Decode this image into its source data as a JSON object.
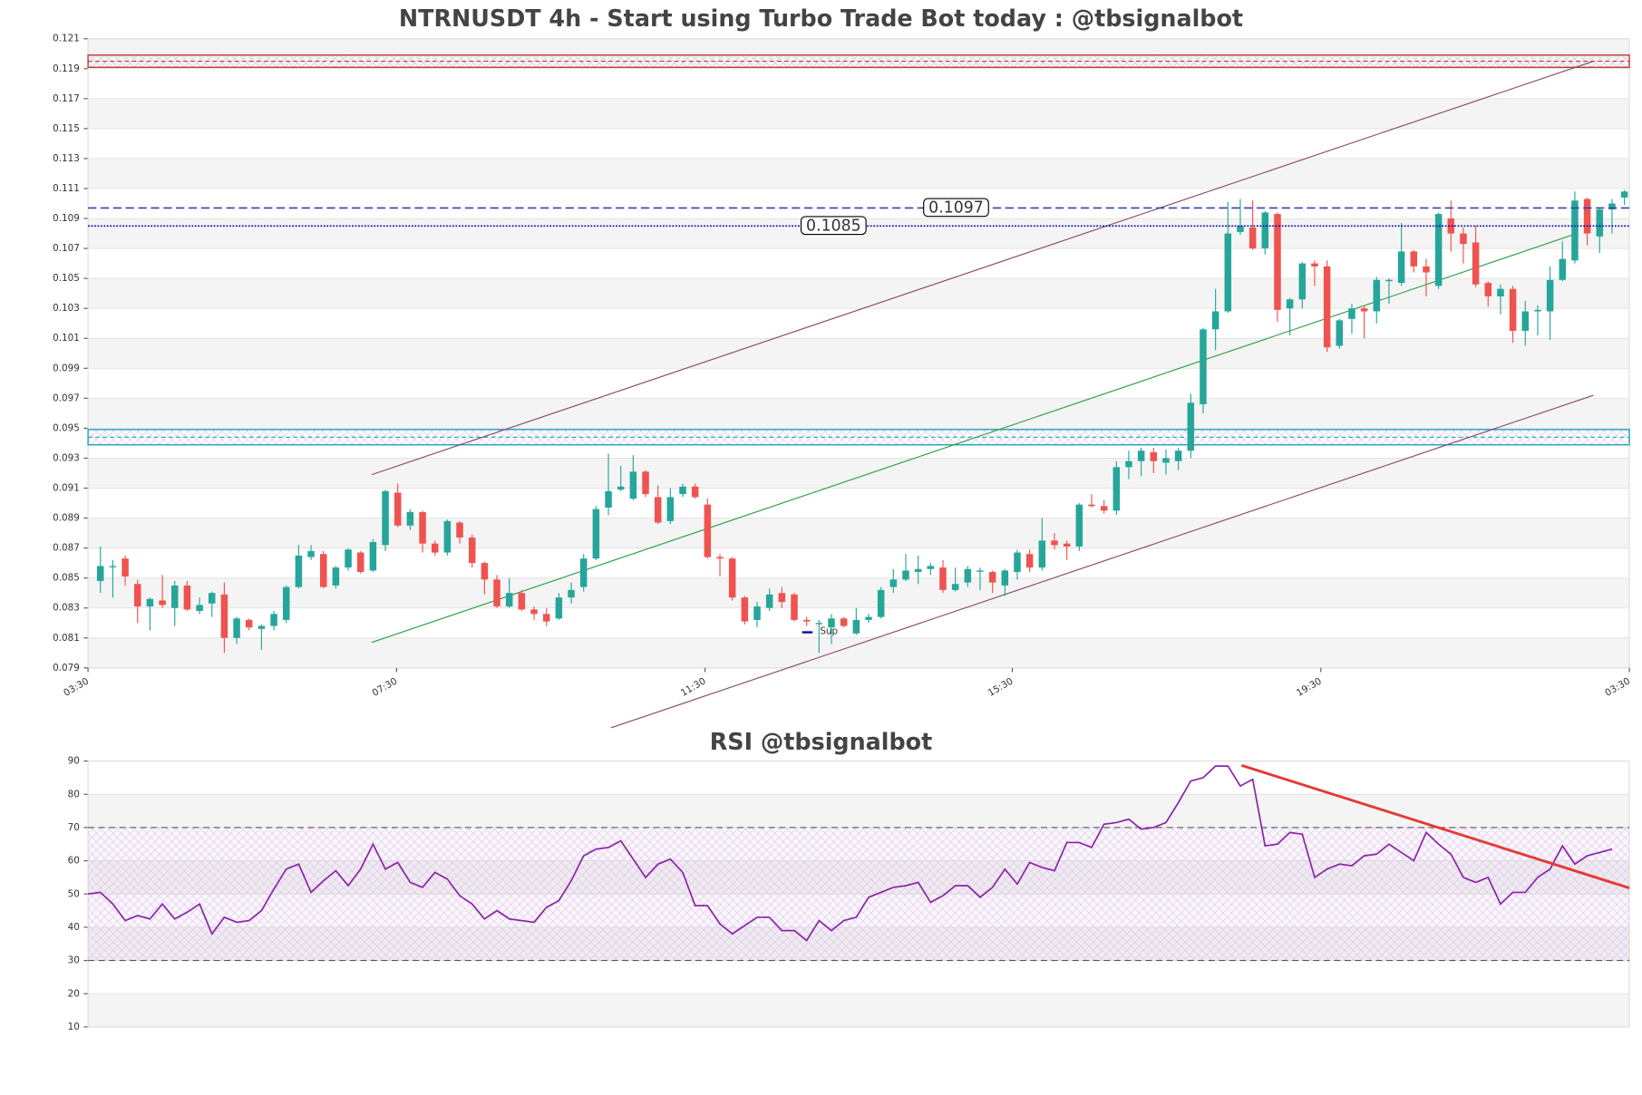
{
  "chart_data": [
    {
      "type": "candlestick",
      "title": "NTRNUSDT 4h - Start using Turbo Trade Bot today : @tbsignalbot",
      "open": [
        0.0848,
        0.0858,
        0.0863,
        0.0846,
        0.0831,
        0.0835,
        0.083,
        0.0845,
        0.0828,
        0.0833,
        0.0839,
        0.081,
        0.0822,
        0.0816,
        0.0818,
        0.0822,
        0.0844,
        0.0864,
        0.0866,
        0.0845,
        0.0857,
        0.0867,
        0.0855,
        0.0872,
        0.0907,
        0.0885,
        0.0894,
        0.0873,
        0.0867,
        0.0887,
        0.0877,
        0.086,
        0.0849,
        0.0831,
        0.084,
        0.0829,
        0.0826,
        0.0823,
        0.0837,
        0.0844,
        0.0863,
        0.0897,
        0.0909,
        0.0903,
        0.0921,
        0.0904,
        0.0888,
        0.0906,
        0.0911,
        0.0899,
        0.0864,
        0.0863,
        0.0837,
        0.0822,
        0.083,
        0.084,
        0.0839,
        0.0822,
        0.082,
        0.0817,
        0.0823,
        0.0813,
        0.0822,
        0.0824,
        0.0844,
        0.0849,
        0.0854,
        0.0856,
        0.0857,
        0.0842,
        0.0847,
        0.0855,
        0.0854,
        0.0845,
        0.0854,
        0.0866,
        0.0857,
        0.0875,
        0.0873,
        0.0871,
        0.0899,
        0.0898,
        0.0895,
        0.0924,
        0.0928,
        0.0934,
        0.0927,
        0.0928,
        0.0935,
        0.0966,
        0.1016,
        0.1028,
        0.1081,
        0.1084,
        0.107,
        0.1093,
        0.103,
        0.1036,
        0.106,
        0.1058,
        0.1005,
        0.1023,
        0.103,
        0.1028,
        0.1049,
        0.1047,
        0.1068,
        0.1058,
        0.1045,
        0.109,
        0.108,
        0.1074,
        0.1047,
        0.1038,
        0.1043,
        0.1015,
        0.1028,
        0.1028,
        0.1049,
        0.1062,
        0.1103,
        0.1078,
        0.1096,
        0.1104
      ],
      "high": [
        0.0871,
        0.0862,
        0.0865,
        0.0849,
        0.0837,
        0.0852,
        0.0848,
        0.0848,
        0.0837,
        0.0841,
        0.0847,
        0.0824,
        0.0823,
        0.0819,
        0.0828,
        0.0845,
        0.0872,
        0.0872,
        0.0868,
        0.0858,
        0.087,
        0.0868,
        0.0876,
        0.0909,
        0.0913,
        0.0896,
        0.0895,
        0.0875,
        0.0889,
        0.0888,
        0.0879,
        0.0861,
        0.0852,
        0.085,
        0.0842,
        0.0831,
        0.083,
        0.084,
        0.0847,
        0.0866,
        0.0898,
        0.0933,
        0.0925,
        0.0932,
        0.0922,
        0.0912,
        0.091,
        0.0913,
        0.0913,
        0.0903,
        0.0866,
        0.0864,
        0.0838,
        0.0834,
        0.0843,
        0.0844,
        0.084,
        0.0824,
        0.0822,
        0.0826,
        0.0824,
        0.083,
        0.0826,
        0.0844,
        0.0856,
        0.0866,
        0.0865,
        0.086,
        0.0862,
        0.0857,
        0.0858,
        0.0857,
        0.0855,
        0.0856,
        0.0869,
        0.0869,
        0.089,
        0.088,
        0.0875,
        0.09,
        0.0906,
        0.0902,
        0.0928,
        0.0935,
        0.0937,
        0.0937,
        0.0936,
        0.0937,
        0.0973,
        0.1017,
        0.1043,
        0.1101,
        0.1103,
        0.1102,
        0.1095,
        0.1094,
        0.1037,
        0.1061,
        0.1062,
        0.1062,
        0.1023,
        0.1033,
        0.1032,
        0.1051,
        0.105,
        0.1087,
        0.1069,
        0.1063,
        0.1094,
        0.1102,
        0.1084,
        0.1085,
        0.1048,
        0.1046,
        0.1045,
        0.1035,
        0.1032,
        0.1058,
        0.1075,
        0.1108,
        0.1104,
        0.1097,
        0.1103,
        0.1109
      ],
      "low": [
        0.084,
        0.0837,
        0.0845,
        0.082,
        0.0815,
        0.083,
        0.0818,
        0.0828,
        0.0826,
        0.0824,
        0.08,
        0.0806,
        0.0815,
        0.0802,
        0.0815,
        0.082,
        0.0843,
        0.0862,
        0.0843,
        0.0843,
        0.0855,
        0.0853,
        0.0854,
        0.0868,
        0.0884,
        0.0882,
        0.0867,
        0.0865,
        0.0865,
        0.0873,
        0.0857,
        0.0839,
        0.083,
        0.083,
        0.0828,
        0.0822,
        0.0818,
        0.0822,
        0.0833,
        0.0841,
        0.0862,
        0.0892,
        0.0908,
        0.0902,
        0.0904,
        0.0886,
        0.0886,
        0.0904,
        0.0903,
        0.0863,
        0.0851,
        0.0835,
        0.0819,
        0.0817,
        0.0828,
        0.083,
        0.0821,
        0.0818,
        0.08,
        0.0806,
        0.0817,
        0.0812,
        0.082,
        0.0823,
        0.084,
        0.0848,
        0.0846,
        0.0852,
        0.084,
        0.0841,
        0.0844,
        0.0842,
        0.084,
        0.0838,
        0.0849,
        0.0854,
        0.0855,
        0.0869,
        0.0862,
        0.0868,
        0.0897,
        0.0893,
        0.0892,
        0.0916,
        0.0918,
        0.092,
        0.0919,
        0.0922,
        0.093,
        0.096,
        0.1002,
        0.1027,
        0.1079,
        0.1069,
        0.1066,
        0.1021,
        0.1012,
        0.103,
        0.1045,
        0.1001,
        0.1003,
        0.1013,
        0.101,
        0.102,
        0.1033,
        0.1045,
        0.1054,
        0.1038,
        0.1043,
        0.1068,
        0.106,
        0.1044,
        0.1031,
        0.1026,
        0.1007,
        0.1005,
        0.1012,
        0.1009,
        0.1048,
        0.106,
        0.1072,
        0.1067,
        0.108,
        0.1099
      ],
      "close": [
        0.0858,
        0.0858,
        0.0851,
        0.0831,
        0.0836,
        0.0832,
        0.0845,
        0.0829,
        0.0832,
        0.084,
        0.081,
        0.0823,
        0.0817,
        0.0818,
        0.0826,
        0.0844,
        0.0865,
        0.0868,
        0.0844,
        0.0857,
        0.0869,
        0.0854,
        0.0874,
        0.0908,
        0.0885,
        0.0894,
        0.0873,
        0.0867,
        0.0888,
        0.0877,
        0.086,
        0.0849,
        0.0831,
        0.084,
        0.0829,
        0.0826,
        0.0821,
        0.0837,
        0.0842,
        0.0863,
        0.0896,
        0.0908,
        0.0911,
        0.0921,
        0.0906,
        0.0887,
        0.0904,
        0.0911,
        0.0904,
        0.0864,
        0.0863,
        0.0837,
        0.0821,
        0.0831,
        0.0839,
        0.0834,
        0.0822,
        0.0821,
        0.082,
        0.0823,
        0.0818,
        0.0822,
        0.0824,
        0.0842,
        0.0849,
        0.0855,
        0.0856,
        0.0858,
        0.0842,
        0.0846,
        0.0856,
        0.0855,
        0.0847,
        0.0855,
        0.0867,
        0.0857,
        0.0875,
        0.0872,
        0.0871,
        0.0899,
        0.0898,
        0.0895,
        0.0924,
        0.0928,
        0.0935,
        0.0928,
        0.093,
        0.0935,
        0.0967,
        0.1016,
        0.1028,
        0.108,
        0.1085,
        0.107,
        0.1094,
        0.1029,
        0.1036,
        0.106,
        0.1058,
        0.1004,
        0.1022,
        0.103,
        0.1028,
        0.1049,
        0.1049,
        0.1068,
        0.1058,
        0.1054,
        0.1093,
        0.108,
        0.1073,
        0.1046,
        0.1038,
        0.1043,
        0.1015,
        0.1028,
        0.1029,
        0.1049,
        0.1063,
        0.1102,
        0.108,
        0.1096,
        0.11,
        0.1108
      ],
      "up_color": "#26a69a",
      "down_color": "#ef5350",
      "xlim": [
        -1,
        123.4
      ],
      "xticks": [
        {
          "value": -1,
          "label": "03:30"
        },
        {
          "value": 23.9,
          "label": "07:30"
        },
        {
          "value": 48.8,
          "label": "11:30"
        },
        {
          "value": 73.6,
          "label": "15:30"
        },
        {
          "value": 98.5,
          "label": "19:30"
        },
        {
          "value": 123.4,
          "label": "03:30"
        }
      ],
      "ylim": [
        0.079,
        0.121
      ],
      "yticks": [
        0.079,
        0.081,
        0.083,
        0.085,
        0.087,
        0.089,
        0.091,
        0.093,
        0.095,
        0.097,
        0.099,
        0.101,
        0.103,
        0.105,
        0.107,
        0.109,
        0.111,
        0.113,
        0.115,
        0.117,
        0.119,
        0.121
      ],
      "grid": true,
      "zones": [
        {
          "range": [
            0.1193,
            0.1197
          ],
          "color": "#c0392b"
        },
        {
          "range": [
            0.0941,
            0.0947
          ],
          "color": "#17a2b8"
        }
      ],
      "hlines": [
        {
          "value": 0.1097,
          "color": "#3344aa",
          "dash": "dashed"
        },
        {
          "value": 0.1085,
          "color": "#0000aa",
          "dash": "dotted"
        }
      ],
      "trendlines": [
        {
          "x": [
            21.9,
            120.5
          ],
          "y": [
            0.0919,
            0.1195
          ],
          "color": "#8b4a6b"
        },
        {
          "x": [
            41.2,
            120.5
          ],
          "y": [
            0.075,
            0.0972
          ],
          "color": "#8b4a6b"
        },
        {
          "x": [
            21.9,
            118.8
          ],
          "y": [
            0.0807,
            0.1079
          ],
          "color": "#2ea043"
        }
      ],
      "legend": {
        "label": "Sup",
        "color": "#0000aa"
      }
    },
    {
      "type": "line",
      "title": "RSI @tbsignalbot",
      "values": [
        50,
        50.5,
        47,
        42,
        43.5,
        42.5,
        47,
        42.5,
        44.5,
        47,
        38,
        43,
        41.5,
        42,
        45,
        51.5,
        57.5,
        59,
        50.5,
        54,
        57,
        52.5,
        57.5,
        65,
        57.5,
        59.5,
        53.5,
        52,
        56.5,
        54.5,
        49.5,
        47,
        42.5,
        45,
        42.5,
        42,
        41.5,
        46,
        48,
        54,
        61.5,
        63.5,
        64,
        66,
        60.5,
        55,
        59,
        60.5,
        56.5,
        46.5,
        46.5,
        41,
        38,
        40.5,
        43,
        43,
        39,
        39,
        36,
        42,
        39,
        42,
        43,
        49,
        50.5,
        52,
        52.5,
        53.5,
        47.5,
        49.5,
        52.5,
        52.5,
        49,
        52,
        57.5,
        53,
        59.5,
        58,
        57,
        65.5,
        65.5,
        64,
        71,
        71.5,
        72.5,
        69.5,
        70,
        71.5,
        77.5,
        84,
        85,
        88.5,
        88.5,
        82.5,
        84.5,
        64.5,
        65,
        68.5,
        68,
        55,
        57.5,
        59,
        58.5,
        61.5,
        62,
        65,
        62.5,
        60,
        68.5,
        65,
        62,
        55,
        53.5,
        55,
        47,
        50.5,
        50.5,
        55,
        57.5,
        64.5,
        59,
        61.5,
        62.5,
        63.5
      ],
      "color": "#8e24aa",
      "ylim": [
        10,
        90
      ],
      "yticks": [
        10,
        20,
        30,
        40,
        50,
        60,
        70,
        80,
        90
      ],
      "grid": true,
      "hlines": [
        30,
        70
      ],
      "trendline": {
        "x": [
          92.1,
          123.4
        ],
        "y": [
          88.7,
          51.8
        ],
        "color": "#e53935"
      }
    }
  ]
}
